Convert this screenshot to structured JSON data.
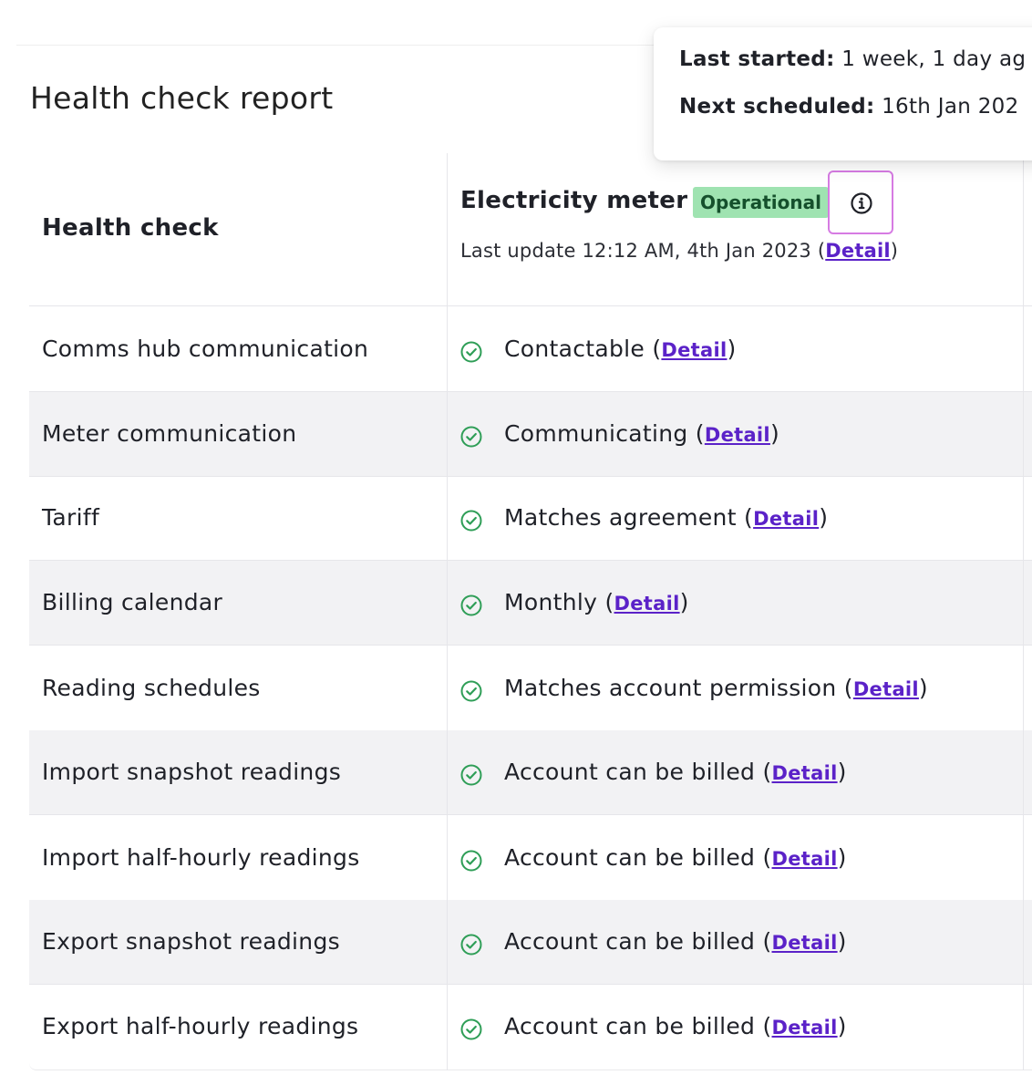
{
  "page": {
    "title": "Health check report"
  },
  "popover": {
    "last_started_label": "Last started:",
    "last_started_value": "1 week, 1 day ag",
    "next_scheduled_label": "Next scheduled:",
    "next_scheduled_value": "16th Jan 202"
  },
  "table": {
    "health_check_header": "Health check",
    "meter": {
      "name": "Electricity meter",
      "status_badge": "Operational",
      "last_update_text": "Last update 12:12 AM, 4th Jan 2023 (",
      "detail_link": "Detail",
      "close_paren": ")"
    },
    "rows": [
      {
        "label": "Comms hub communication",
        "status": "Contactable",
        "detail": "Detail"
      },
      {
        "label": "Meter communication",
        "status": "Communicating",
        "detail": "Detail"
      },
      {
        "label": "Tariff",
        "status": "Matches agreement",
        "detail": "Detail"
      },
      {
        "label": "Billing calendar",
        "status": "Monthly",
        "detail": "Detail"
      },
      {
        "label": "Reading schedules",
        "status": "Matches account permission",
        "detail": "Detail"
      },
      {
        "label": "Import snapshot readings",
        "status": "Account can be billed",
        "detail": "Detail"
      },
      {
        "label": "Import half-hourly readings",
        "status": "Account can be billed",
        "detail": "Detail"
      },
      {
        "label": "Export snapshot readings",
        "status": "Account can be billed",
        "detail": "Detail"
      },
      {
        "label": "Export half-hourly readings",
        "status": "Account can be billed",
        "detail": "Detail"
      }
    ]
  },
  "colors": {
    "badge_bg": "#9fe3b1",
    "badge_text": "#15502c",
    "link": "#5b22c8",
    "check": "#2f9e57",
    "focus_ring": "#d67be3"
  },
  "icons": {
    "info": "info-circle-icon",
    "check": "check-circle-icon"
  }
}
